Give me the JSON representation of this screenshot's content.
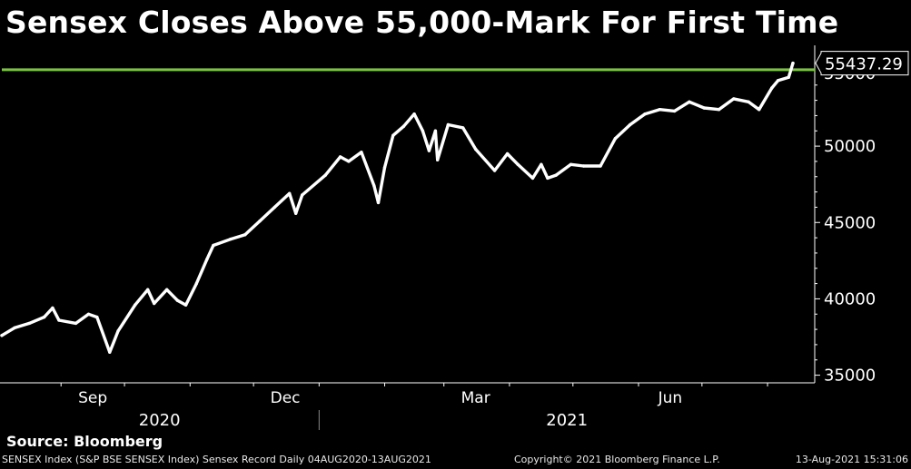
{
  "header": {
    "title": "Sensex Closes Above 55,000-Mark For First Time"
  },
  "footer": {
    "source": "Source: Bloomberg",
    "description": "SENSEX Index (S&P BSE SENSEX Index) Sensex Record  Daily 04AUG2020-13AUG2021",
    "copyright": "Copyright© 2021 Bloomberg Finance L.P.",
    "timestamp": "13-Aug-2021 15:31:06"
  },
  "colors": {
    "background": "#000000",
    "line": "#ffffff",
    "record_line": "#7cc242",
    "axis": "#ffffff"
  },
  "chart_data": {
    "type": "line",
    "title": "Sensex Closes Above 55,000-Mark For First Time",
    "xlabel": "",
    "ylabel": "",
    "ylim": [
      34500,
      56600
    ],
    "y_ticks": [
      35000,
      40000,
      45000,
      50000
    ],
    "x_ticks": [
      "Sep",
      "Dec",
      "Mar",
      "Jun"
    ],
    "year_labels": [
      "2020",
      "2021"
    ],
    "grid": false,
    "x": [
      "2020-08-04",
      "2020-08-10",
      "2020-08-17",
      "2020-08-24",
      "2020-08-28",
      "2020-08-31",
      "2020-09-08",
      "2020-09-14",
      "2020-09-18",
      "2020-09-24",
      "2020-09-28",
      "2020-10-06",
      "2020-10-12",
      "2020-10-15",
      "2020-10-21",
      "2020-10-26",
      "2020-10-30",
      "2020-11-04",
      "2020-11-09",
      "2020-11-12",
      "2020-11-20",
      "2020-11-27",
      "2020-12-04",
      "2020-12-11",
      "2020-12-18",
      "2020-12-21",
      "2020-12-24",
      "2021-01-04",
      "2021-01-11",
      "2021-01-15",
      "2021-01-21",
      "2021-01-27",
      "2021-01-29",
      "2021-02-01",
      "2021-02-05",
      "2021-02-10",
      "2021-02-15",
      "2021-02-19",
      "2021-02-22",
      "2021-02-25",
      "2021-02-26",
      "2021-03-03",
      "2021-03-10",
      "2021-03-16",
      "2021-03-25",
      "2021-03-31",
      "2021-04-05",
      "2021-04-12",
      "2021-04-16",
      "2021-04-19",
      "2021-04-23",
      "2021-04-30",
      "2021-05-06",
      "2021-05-14",
      "2021-05-21",
      "2021-05-28",
      "2021-06-04",
      "2021-06-11",
      "2021-06-18",
      "2021-06-25",
      "2021-07-02",
      "2021-07-09",
      "2021-07-16",
      "2021-07-23",
      "2021-07-28",
      "2021-08-03",
      "2021-08-06",
      "2021-08-11",
      "2021-08-13"
    ],
    "series": [
      {
        "values": [
          37600,
          38100,
          38400,
          38800,
          39400,
          38600,
          38400,
          39000,
          38800,
          36500,
          37900,
          39600,
          40600,
          39700,
          40600,
          39900,
          39600,
          41000,
          42600,
          43500,
          43900,
          44200,
          45100,
          46000,
          46900,
          45600,
          46800,
          48100,
          49300,
          49000,
          49600,
          47400,
          46300,
          48600,
          50700,
          51300,
          52100,
          51000,
          49700,
          51000,
          49100,
          51400,
          51200,
          49800,
          48400,
          49500,
          48800,
          47900,
          48800,
          47900,
          48100,
          48800,
          48700,
          48700,
          50500,
          51400,
          52100,
          52400,
          52300,
          52900,
          52500,
          52400,
          53100,
          52900,
          52400,
          53800,
          54300,
          54500,
          55437.29
        ]
      }
    ],
    "record_level": 55000,
    "last_value_label": "55437.29",
    "partial_tick_label": "55000"
  }
}
